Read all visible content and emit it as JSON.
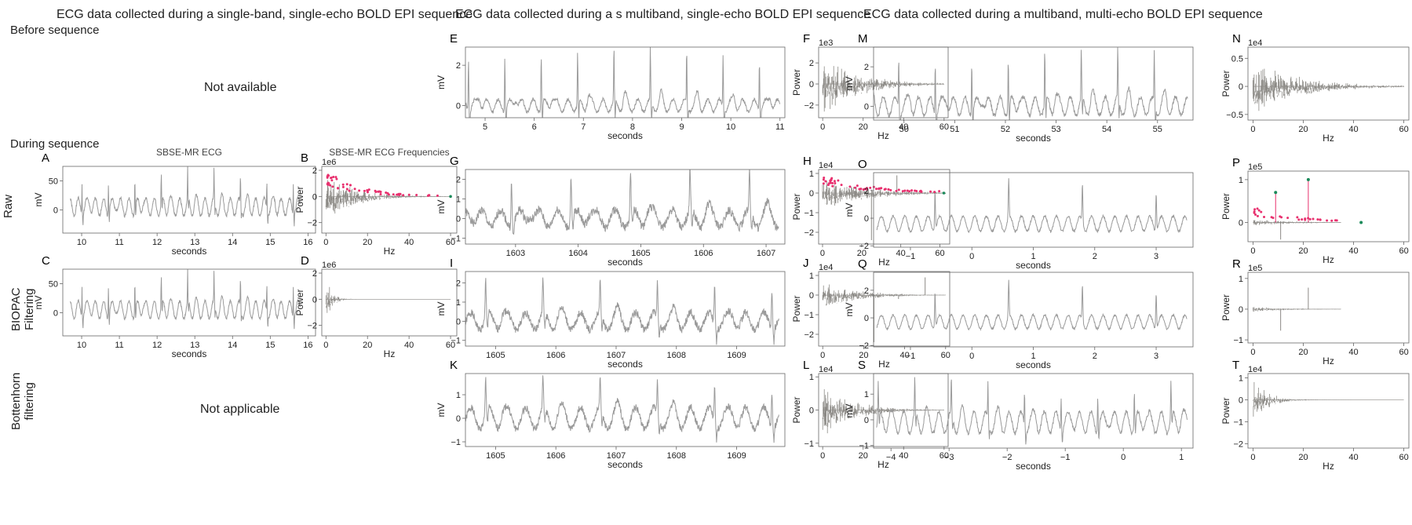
{
  "headers": {
    "col1": "ECG data collected during a single-band, single-echo BOLD EPI sequence",
    "col2": "ECG data collected during a s multiband, single-echo BOLD EPI sequence",
    "col3": "ECG data collected during a multiband, multi-echo BOLD EPI sequence"
  },
  "row_labels": {
    "before": "Before  sequence",
    "during": "During  sequence",
    "raw": "Raw",
    "biopac1": "BIOPAC",
    "biopac2": "Filtering",
    "bott1": "Bottenhorn",
    "bott2": "filtering"
  },
  "placeholders": {
    "not_available": "Not available",
    "not_applicable": "Not applicable"
  },
  "colors": {
    "trace": "#9a9a9a",
    "spectrum": "#8c8a86",
    "peak_pink": "#e8306e",
    "peak_green": "#1a8a5a",
    "axis": "#666666"
  },
  "chart_data": [
    {
      "id": "A",
      "type": "line",
      "title": "SBSE-MR ECG",
      "xlabel": "seconds",
      "ylabel": "mV",
      "xlim": [
        9.5,
        16.2
      ],
      "ylim": [
        -40,
        75
      ],
      "xticks": [
        10,
        11,
        12,
        13,
        14,
        15,
        16
      ],
      "yticks": [
        0,
        50
      ],
      "seriesStart": 9.7,
      "seriesEnd": 15.8,
      "signal": {
        "kind": "ecg",
        "period": 0.7,
        "baseAmp": 0.28,
        "noise": 0.05,
        "invert": true,
        "seed": 1
      },
      "yOffset": 5,
      "amp": 60
    },
    {
      "id": "B",
      "type": "spectrum",
      "title": "SBSE-MR ECG Frequencies",
      "xlabel": "Hz",
      "ylabel": "Power",
      "multiplier": "1e6",
      "xlim": [
        -2,
        63
      ],
      "ylim": [
        -2.8,
        2.3
      ],
      "xticks": [
        0,
        20,
        40,
        60
      ],
      "yticks": [
        -2,
        0,
        2
      ],
      "env": {
        "peak": 2.0,
        "decay": 14,
        "end": 60
      },
      "peaks": "pink",
      "peakMax": 2.0,
      "seed": 2
    },
    {
      "id": "C",
      "type": "line",
      "xlabel": "seconds",
      "ylabel": "mV",
      "xlim": [
        9.5,
        16.2
      ],
      "ylim": [
        -40,
        75
      ],
      "xticks": [
        10,
        11,
        12,
        13,
        14,
        15,
        16
      ],
      "yticks": [
        0,
        50
      ],
      "seriesStart": 9.7,
      "seriesEnd": 15.8,
      "signal": {
        "kind": "ecg",
        "period": 0.7,
        "baseAmp": 0.28,
        "noise": 0.04,
        "invert": true,
        "seed": 3
      },
      "yOffset": 5,
      "amp": 60
    },
    {
      "id": "D",
      "type": "spectrum",
      "xlabel": "Hz",
      "ylabel": "Power",
      "multiplier": "1e6",
      "xlim": [
        -2,
        63
      ],
      "ylim": [
        -2.8,
        2.3
      ],
      "xticks": [
        0,
        20,
        40,
        60
      ],
      "yticks": [
        -2,
        0,
        2
      ],
      "env": {
        "peak": 2.0,
        "decay": 3,
        "end": 60
      },
      "seed": 4
    },
    {
      "id": "E",
      "type": "line",
      "xlabel": "seconds",
      "ylabel": "mV",
      "xlim": [
        4.6,
        11.1
      ],
      "ylim": [
        -0.6,
        2.9
      ],
      "xticks": [
        5,
        6,
        7,
        8,
        9,
        10,
        11
      ],
      "yticks": [
        0,
        2
      ],
      "seriesStart": 4.6,
      "seriesEnd": 11.0,
      "signal": {
        "kind": "ecg",
        "period": 0.74,
        "baseAmp": 0.12,
        "noise": 0.03,
        "seed": 5
      },
      "yOffset": 0,
      "amp": 2.6
    },
    {
      "id": "F",
      "type": "spectrum",
      "xlabel": "Hz",
      "ylabel": "Power",
      "multiplier": "1e3",
      "xlim": [
        -2,
        62
      ],
      "ylim": [
        -3.2,
        3.5
      ],
      "xticks": [
        0,
        20,
        40,
        60
      ],
      "yticks": [
        -2,
        0,
        2
      ],
      "env": {
        "peak": 3.0,
        "decay": 18,
        "end": 60
      },
      "seed": 6
    },
    {
      "id": "G",
      "type": "line",
      "xlabel": "seconds",
      "ylabel": "mV",
      "xlim": [
        1602.2,
        1607.3
      ],
      "ylim": [
        -1.3,
        2.5
      ],
      "xticks": [
        1603,
        1604,
        1605,
        1606,
        1607
      ],
      "yticks": [
        -1,
        0,
        1,
        2
      ],
      "seriesStart": 1602.2,
      "seriesEnd": 1607.2,
      "signal": {
        "kind": "ecg",
        "period": 0.95,
        "baseAmp": 0.2,
        "noise": 0.1,
        "seed": 7
      },
      "yOffset": 0,
      "amp": 2.2
    },
    {
      "id": "H",
      "type": "spectrum",
      "xlabel": "Hz",
      "ylabel": "Power",
      "multiplier": "1e4",
      "xlim": [
        -2,
        65
      ],
      "ylim": [
        -2.6,
        1.2
      ],
      "xticks": [
        0,
        20,
        40,
        60
      ],
      "yticks": [
        -2,
        -1,
        0,
        1
      ],
      "env": {
        "peak": 0.9,
        "decay": 22,
        "end": 63
      },
      "peaks": "pink",
      "peakMax": 0.9,
      "spikes": [
        [
          25,
          -2.4
        ],
        [
          38,
          0.9
        ]
      ],
      "seed": 8
    },
    {
      "id": "I",
      "type": "line",
      "xlabel": "seconds",
      "ylabel": "mV",
      "xlim": [
        1604.5,
        1609.8
      ],
      "ylim": [
        -1.3,
        2.6
      ],
      "xticks": [
        1605,
        1606,
        1607,
        1608,
        1609
      ],
      "yticks": [
        -1,
        0,
        1,
        2
      ],
      "seriesStart": 1604.5,
      "seriesEnd": 1609.7,
      "signal": {
        "kind": "ecg",
        "period": 0.95,
        "baseAmp": 0.22,
        "noise": 0.1,
        "seed": 9
      },
      "yOffset": 0,
      "amp": 2.0
    },
    {
      "id": "J",
      "type": "spectrum",
      "xlabel": "Hz",
      "ylabel": "Power",
      "multiplier": "1e4",
      "xlim": [
        -2,
        62
      ],
      "ylim": [
        -2.6,
        1.2
      ],
      "xticks": [
        0,
        20,
        40,
        60
      ],
      "yticks": [
        -2,
        -1,
        0,
        1
      ],
      "env": {
        "peak": 0.8,
        "decay": 16,
        "end": 60
      },
      "spikes": [
        [
          25,
          -2.4
        ],
        [
          37,
          -0.2
        ],
        [
          50,
          0.9
        ]
      ],
      "seed": 10
    },
    {
      "id": "K",
      "type": "line",
      "xlabel": "seconds",
      "ylabel": "mV",
      "xlim": [
        1604.5,
        1609.8
      ],
      "ylim": [
        -1.2,
        1.9
      ],
      "xticks": [
        1605,
        1606,
        1607,
        1608,
        1609
      ],
      "yticks": [
        -1,
        0,
        1
      ],
      "seriesStart": 1604.5,
      "seriesEnd": 1609.7,
      "signal": {
        "kind": "ecg",
        "period": 0.95,
        "baseAmp": 0.3,
        "noise": 0.1,
        "seed": 11
      },
      "yOffset": 0,
      "amp": 1.5
    },
    {
      "id": "L",
      "type": "spectrum",
      "xlabel": "Hz",
      "ylabel": "Power",
      "multiplier": "1e4",
      "xlim": [
        -2,
        62
      ],
      "ylim": [
        -1.1,
        1.1
      ],
      "xticks": [
        0,
        20,
        40,
        60
      ],
      "yticks": [
        -1,
        0,
        1
      ],
      "env": {
        "peak": 0.9,
        "decay": 14,
        "end": 60
      },
      "seed": 12
    },
    {
      "id": "M",
      "type": "line",
      "xlabel": "seconds",
      "ylabel": "mV",
      "xlim": [
        49.4,
        55.7
      ],
      "ylim": [
        -0.7,
        3.0
      ],
      "xticks": [
        50,
        51,
        52,
        53,
        54,
        55
      ],
      "yticks": [
        0,
        2
      ],
      "seriesStart": 49.4,
      "seriesEnd": 55.6,
      "signal": {
        "kind": "ecg",
        "period": 0.72,
        "baseAmp": 0.18,
        "noise": 0.04,
        "seed": 13
      },
      "yOffset": 0,
      "amp": 2.6
    },
    {
      "id": "N",
      "type": "spectrum",
      "xlabel": "Hz",
      "ylabel": "Power",
      "multiplier": "1e4",
      "xlim": [
        -2,
        62
      ],
      "ylim": [
        -0.6,
        0.7
      ],
      "xticks": [
        0,
        20,
        40,
        60
      ],
      "yticks": [
        -0.5,
        0.0,
        0.5
      ],
      "env": {
        "peak": 0.5,
        "decay": 18,
        "end": 60
      },
      "seed": 14
    },
    {
      "id": "O",
      "type": "line",
      "xlabel": "seconds",
      "ylabel": "mV",
      "xlim": [
        -1.6,
        3.6
      ],
      "ylim": [
        -2.1,
        3.3
      ],
      "xticks": [
        -1,
        0,
        1,
        2,
        3
      ],
      "yticks": [
        -2,
        0,
        2
      ],
      "seriesStart": -1.55,
      "seriesEnd": 3.5,
      "signal": {
        "kind": "osc",
        "period": 0.19,
        "oscAmp": 0.55,
        "period2": 1.2,
        "spike": 2.8,
        "noise": 0.08,
        "seed": 15
      },
      "yOffset": -0.4,
      "amp": 1
    },
    {
      "id": "P",
      "type": "spectrum",
      "xlabel": "Hz",
      "ylabel": "Power",
      "multiplier": "1e5",
      "xlim": [
        -2,
        62
      ],
      "ylim": [
        -0.45,
        1.2
      ],
      "xticks": [
        0,
        20,
        40,
        60
      ],
      "yticks": [
        0,
        1
      ],
      "env": {
        "peak": 0.1,
        "decay": 14,
        "end": 35
      },
      "peaks": "mixed",
      "peakMax": 0.35,
      "spikes": [
        [
          11,
          -0.4
        ]
      ],
      "seed": 16
    },
    {
      "id": "Q",
      "type": "line",
      "xlabel": "seconds",
      "ylabel": "mV",
      "xlim": [
        -1.6,
        3.6
      ],
      "ylim": [
        -2.1,
        3.3
      ],
      "xticks": [
        -1,
        0,
        1,
        2,
        3
      ],
      "yticks": [
        -2,
        0,
        2
      ],
      "seriesStart": -1.55,
      "seriesEnd": 3.5,
      "signal": {
        "kind": "osc",
        "period": 0.19,
        "oscAmp": 0.5,
        "period2": 1.2,
        "spike": 2.6,
        "noise": 0.07,
        "seed": 17
      },
      "yOffset": -0.3,
      "amp": 1
    },
    {
      "id": "R",
      "type": "spectrum",
      "xlabel": "Hz",
      "ylabel": "Power",
      "multiplier": "1e5",
      "xlim": [
        -2,
        62
      ],
      "ylim": [
        -1.1,
        1.2
      ],
      "xticks": [
        0,
        20,
        40,
        60
      ],
      "yticks": [
        -1,
        0,
        1
      ],
      "env": {
        "peak": 0.1,
        "decay": 12,
        "end": 35
      },
      "spikes": [
        [
          11,
          -0.7
        ],
        [
          22,
          0.7
        ]
      ],
      "seed": 18
    },
    {
      "id": "S",
      "type": "line",
      "xlabel": "seconds",
      "ylabel": "mV",
      "xlim": [
        -4.3,
        1.2
      ],
      "ylim": [
        -1.1,
        1.8
      ],
      "xticks": [
        -4,
        -3,
        -2,
        -1,
        0,
        1
      ],
      "yticks": [
        -1,
        0,
        1
      ],
      "seriesStart": -4.25,
      "seriesEnd": 1.1,
      "signal": {
        "kind": "ecg",
        "period": 0.63,
        "baseAmp": 0.3,
        "noise": 0.05,
        "seed": 19
      },
      "yOffset": -0.1,
      "amp": 1.4
    },
    {
      "id": "T",
      "type": "spectrum",
      "xlabel": "Hz",
      "ylabel": "Power",
      "multiplier": "1e4",
      "xlim": [
        -2,
        62
      ],
      "ylim": [
        -2.2,
        1.2
      ],
      "xticks": [
        0,
        20,
        40,
        60
      ],
      "yticks": [
        -2,
        -1,
        0,
        1
      ],
      "env": {
        "peak": 1.0,
        "decay": 6,
        "end": 60
      },
      "seed": 20
    }
  ]
}
